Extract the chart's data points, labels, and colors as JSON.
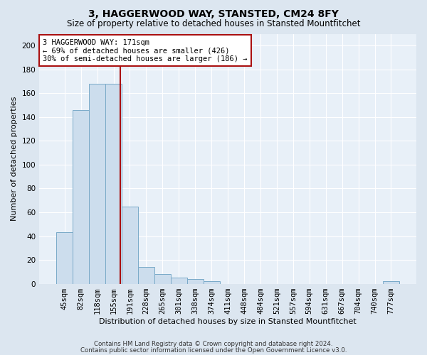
{
  "title1": "3, HAGGERWOOD WAY, STANSTED, CM24 8FY",
  "title2": "Size of property relative to detached houses in Stansted Mountfitchet",
  "xlabel": "Distribution of detached houses by size in Stansted Mountfitchet",
  "ylabel": "Number of detached properties",
  "footnote1": "Contains HM Land Registry data © Crown copyright and database right 2024.",
  "footnote2": "Contains public sector information licensed under the Open Government Licence v3.0.",
  "bin_labels": [
    "45sqm",
    "82sqm",
    "118sqm",
    "155sqm",
    "191sqm",
    "228sqm",
    "265sqm",
    "301sqm",
    "338sqm",
    "374sqm",
    "411sqm",
    "448sqm",
    "484sqm",
    "521sqm",
    "557sqm",
    "594sqm",
    "631sqm",
    "667sqm",
    "704sqm",
    "740sqm",
    "777sqm"
  ],
  "bar_values": [
    43,
    146,
    168,
    168,
    65,
    14,
    8,
    5,
    4,
    2,
    0,
    0,
    0,
    0,
    0,
    0,
    0,
    0,
    0,
    0,
    2
  ],
  "bar_color": "#ccdded",
  "bar_edge_color": "#7aaac8",
  "vline_x_idx": 3.43,
  "vline_color": "#aa1111",
  "annotation_text": "3 HAGGERWOOD WAY: 171sqm\n← 69% of detached houses are smaller (426)\n30% of semi-detached houses are larger (186) →",
  "annotation_box_facecolor": "#ffffff",
  "annotation_box_edgecolor": "#aa1111",
  "ylim": [
    0,
    210
  ],
  "yticks": [
    0,
    20,
    40,
    60,
    80,
    100,
    120,
    140,
    160,
    180,
    200
  ],
  "bg_color": "#dce6f0",
  "plot_bg_color": "#e8f0f8",
  "title1_fontsize": 10,
  "title2_fontsize": 8.5,
  "xlabel_fontsize": 8,
  "ylabel_fontsize": 8,
  "tick_fontsize": 7.5,
  "footnote_fontsize": 6.2
}
